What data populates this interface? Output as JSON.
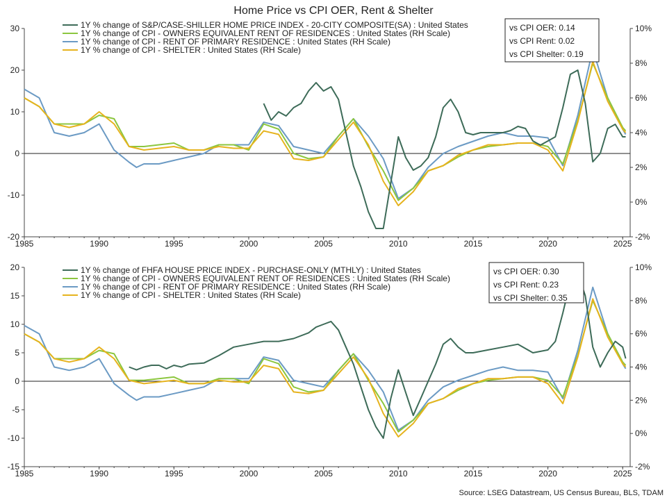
{
  "title": "Home Price vs CPI OER, Rent & Shelter",
  "source": "Source: LSEG Datastream, US Census Bureau, BLS, TDAM",
  "colors": {
    "home": "#3d6b58",
    "oer": "#8cc63f",
    "rent": "#6b9ac4",
    "shelter": "#e6b31e"
  },
  "chart_data": [
    {
      "type": "line",
      "x_ticks": [
        "1985",
        "1990",
        "1995",
        "2000",
        "2005",
        "2010",
        "2015",
        "2020",
        "2025"
      ],
      "xlim": [
        1985,
        2025.5
      ],
      "left_ticks": [
        "30",
        "20",
        "10",
        "0",
        "-10",
        "-20"
      ],
      "ylim_left": [
        -20,
        30
      ],
      "right_ticks": [
        "10%",
        "8%",
        "6%",
        "4%",
        "2%",
        "0%",
        "-2%"
      ],
      "ylim_right": [
        -2,
        10
      ],
      "legend": [
        "1Y % change of S&P/CASE-SHILLER HOME PRICE INDEX - 20-CITY COMPOSITE(SA) : United States",
        "1Y % change of CPI - OWNERS EQUIVALENT RENT OF RESIDENCES : United States (RH Scale)",
        "1Y % change of CPI - RENT OF PRIMARY RESIDENCE : United States (RH Scale)",
        "1Y % change of CPI - SHELTER : United States (RH Scale)"
      ],
      "correlations": [
        "vs CPI OER: 0.14",
        "vs CPI Rent: 0.02",
        "vs CPI Shelter: 0.19"
      ],
      "series": [
        {
          "name": "1Y % change of S&P/CASE-SHILLER HOME PRICE INDEX - 20-CITY COMPOSITE(SA) : United States",
          "axis": "left",
          "color_key": "home",
          "x": [
            2001.0,
            2001.5,
            2002.0,
            2002.5,
            2003.0,
            2003.5,
            2004.0,
            2004.5,
            2005.0,
            2005.5,
            2006.0,
            2006.5,
            2007.0,
            2007.5,
            2008.0,
            2008.5,
            2009.0,
            2009.5,
            2010.0,
            2010.5,
            2011.0,
            2011.5,
            2012.0,
            2012.5,
            2013.0,
            2013.5,
            2014.0,
            2014.5,
            2015.0,
            2015.5,
            2016.0,
            2016.5,
            2017.0,
            2017.5,
            2018.0,
            2018.5,
            2019.0,
            2019.5,
            2020.0,
            2020.5,
            2021.0,
            2021.5,
            2022.0,
            2022.5,
            2023.0,
            2023.5,
            2024.0,
            2024.5,
            2025.0,
            2025.2
          ],
          "y": [
            12,
            8,
            10,
            9,
            11,
            12,
            15,
            17,
            15,
            16,
            13,
            5,
            -3,
            -8,
            -14,
            -18,
            -18,
            -7,
            4,
            -1,
            -4,
            -3,
            -1,
            4,
            11,
            13,
            10,
            5,
            4.5,
            5,
            5,
            5,
            5,
            5.5,
            6.5,
            6,
            3,
            2,
            3,
            4,
            11,
            19,
            20,
            12,
            -2,
            0,
            6,
            7,
            4,
            4
          ]
        },
        {
          "name": "1Y % change of CPI - OWNERS EQUIVALENT RENT OF RESIDENCES : United States (RH Scale)",
          "axis": "right",
          "color_key": "oer",
          "x": [
            1985.0,
            1986.0,
            1987.0,
            1988.0,
            1989.0,
            1990.0,
            1991.0,
            1991.5,
            1992.0,
            1993.0,
            1994.0,
            1995.0,
            1996.0,
            1997.0,
            1998.0,
            1999.0,
            2000.0,
            2001.0,
            2002.0,
            2003.0,
            2004.0,
            2005.0,
            2006.0,
            2007.0,
            2008.0,
            2009.0,
            2010.0,
            2011.0,
            2012.0,
            2013.0,
            2014.0,
            2015.0,
            2016.0,
            2017.0,
            2018.0,
            2019.0,
            2020.0,
            2021.0,
            2022.0,
            2023.0,
            2024.0,
            2025.0,
            2025.2
          ],
          "y": [
            6.0,
            5.5,
            4.5,
            4.5,
            4.5,
            5.0,
            4.8,
            4.0,
            3.2,
            3.2,
            3.3,
            3.4,
            3.0,
            3.0,
            3.3,
            3.3,
            3.0,
            4.5,
            4.2,
            2.8,
            2.5,
            2.6,
            3.8,
            4.8,
            3.2,
            1.8,
            0.1,
            0.8,
            1.8,
            2.1,
            2.6,
            3.0,
            3.2,
            3.3,
            3.4,
            3.4,
            3.2,
            2.2,
            4.7,
            8.0,
            6.0,
            4.3,
            4.1
          ]
        },
        {
          "name": "1Y % change of CPI - RENT OF PRIMARY RESIDENCE : United States (RH Scale)",
          "axis": "right",
          "color_key": "rent",
          "x": [
            1985.0,
            1986.0,
            1987.0,
            1988.0,
            1989.0,
            1990.0,
            1991.0,
            1992.0,
            1992.5,
            1993.0,
            1994.0,
            1995.0,
            1996.0,
            1997.0,
            1998.0,
            1999.0,
            2000.0,
            2001.0,
            2002.0,
            2003.0,
            2004.0,
            2005.0,
            2006.0,
            2007.0,
            2008.0,
            2009.0,
            2010.0,
            2011.0,
            2012.0,
            2013.0,
            2014.0,
            2015.0,
            2016.0,
            2017.0,
            2018.0,
            2019.0,
            2020.0,
            2021.0,
            2022.0,
            2023.0,
            2024.0,
            2025.0,
            2025.2
          ],
          "y": [
            6.5,
            6.0,
            4.0,
            3.8,
            4.0,
            4.5,
            3.0,
            2.3,
            2.0,
            2.2,
            2.2,
            2.4,
            2.6,
            2.8,
            3.3,
            3.3,
            3.3,
            4.6,
            4.4,
            3.2,
            3.0,
            2.8,
            3.8,
            4.8,
            3.8,
            2.5,
            0.2,
            0.8,
            2.0,
            2.8,
            3.2,
            3.5,
            3.8,
            4.0,
            3.8,
            3.8,
            3.7,
            2.1,
            5.0,
            8.8,
            6.0,
            4.2,
            3.9
          ]
        },
        {
          "name": "1Y % change of CPI - SHELTER : United States (RH Scale)",
          "axis": "right",
          "color_key": "shelter",
          "x": [
            1985.0,
            1986.0,
            1987.0,
            1988.0,
            1989.0,
            1990.0,
            1991.0,
            1992.0,
            1993.0,
            1994.0,
            1995.0,
            1996.0,
            1997.0,
            1998.0,
            1999.0,
            2000.0,
            2001.0,
            2002.0,
            2003.0,
            2004.0,
            2005.0,
            2006.0,
            2007.0,
            2008.0,
            2009.0,
            2010.0,
            2011.0,
            2012.0,
            2013.0,
            2014.0,
            2015.0,
            2016.0,
            2017.0,
            2018.0,
            2019.0,
            2020.0,
            2021.0,
            2022.0,
            2023.0,
            2024.0,
            2025.0,
            2025.2
          ],
          "y": [
            6.0,
            5.5,
            4.5,
            4.3,
            4.5,
            5.2,
            4.5,
            3.2,
            3.0,
            3.1,
            3.2,
            3.0,
            3.0,
            3.2,
            3.1,
            3.1,
            4.1,
            3.9,
            2.5,
            2.4,
            2.6,
            3.6,
            4.6,
            3.3,
            1.2,
            -0.2,
            0.6,
            1.8,
            2.1,
            2.7,
            3.0,
            3.3,
            3.3,
            3.4,
            3.4,
            3.0,
            1.8,
            4.6,
            8.1,
            5.8,
            4.2,
            4.0
          ]
        }
      ]
    },
    {
      "type": "line",
      "x_ticks": [
        "1985",
        "1990",
        "1995",
        "2000",
        "2005",
        "2010",
        "2015",
        "2020",
        "2025"
      ],
      "xlim": [
        1985,
        2025.5
      ],
      "left_ticks": [
        "20",
        "15",
        "10",
        "5",
        "0",
        "-5",
        "-10",
        "-15"
      ],
      "ylim_left": [
        -15,
        20
      ],
      "right_ticks": [
        "10%",
        "8%",
        "6%",
        "4%",
        "2%",
        "0%",
        "-2%"
      ],
      "ylim_right": [
        -2,
        10
      ],
      "legend": [
        "1Y % change of FHFA HOUSE PRICE INDEX - PURCHASE-ONLY (MTHLY) : United States",
        "1Y % change of CPI - OWNERS EQUIVALENT RENT OF RESIDENCES : United States (RH Scale)",
        "1Y % change of CPI - RENT OF PRIMARY RESIDENCE : United States (RH Scale)",
        "1Y % change of CPI - SHELTER : United States (RH Scale)"
      ],
      "correlations": [
        "vs CPI OER: 0.30",
        "vs CPI Rent: 0.23",
        "vs CPI Shelter: 0.35"
      ],
      "series": [
        {
          "name": "1Y % change of FHFA HOUSE PRICE INDEX - PURCHASE-ONLY (MTHLY) : United States",
          "axis": "left",
          "color_key": "home",
          "x": [
            1992.0,
            1992.5,
            1993.0,
            1993.5,
            1994.0,
            1994.5,
            1995.0,
            1995.5,
            1996.0,
            1997.0,
            1998.0,
            1999.0,
            2000.0,
            2001.0,
            2002.0,
            2003.0,
            2004.0,
            2004.5,
            2005.0,
            2005.5,
            2006.0,
            2006.5,
            2007.0,
            2007.5,
            2008.0,
            2008.5,
            2009.0,
            2009.5,
            2010.0,
            2010.5,
            2011.0,
            2011.5,
            2012.0,
            2012.5,
            2013.0,
            2013.5,
            2014.0,
            2014.5,
            2015.0,
            2016.0,
            2017.0,
            2018.0,
            2019.0,
            2020.0,
            2020.5,
            2021.0,
            2021.5,
            2022.0,
            2022.5,
            2023.0,
            2023.5,
            2024.0,
            2024.5,
            2025.0,
            2025.2
          ],
          "y": [
            2.5,
            2.0,
            2.5,
            2.8,
            2.8,
            2.2,
            2.8,
            2.5,
            3.0,
            3.2,
            4.5,
            6.0,
            6.5,
            7.0,
            7.0,
            7.5,
            8.5,
            9.5,
            10.0,
            10.5,
            9.0,
            6.0,
            3.0,
            -1.0,
            -5.0,
            -8.0,
            -10.0,
            -3.0,
            2.0,
            -2.0,
            -6.0,
            -3.0,
            0.0,
            3.0,
            6.5,
            7.5,
            6.0,
            5.0,
            5.0,
            5.5,
            6.0,
            6.5,
            5.0,
            5.5,
            7.0,
            12.0,
            17.5,
            19.0,
            15.0,
            6.0,
            2.5,
            5.0,
            7.0,
            6.0,
            4.0
          ]
        },
        {
          "name": "1Y % change of CPI - OWNERS EQUIVALENT RENT OF RESIDENCES : United States (RH Scale)",
          "axis": "right",
          "color_key": "oer",
          "x": [
            1985.0,
            1986.0,
            1987.0,
            1988.0,
            1989.0,
            1990.0,
            1991.0,
            1991.5,
            1992.0,
            1993.0,
            1994.0,
            1995.0,
            1996.0,
            1997.0,
            1998.0,
            1999.0,
            2000.0,
            2001.0,
            2002.0,
            2003.0,
            2004.0,
            2005.0,
            2006.0,
            2007.0,
            2008.0,
            2009.0,
            2010.0,
            2011.0,
            2012.0,
            2013.0,
            2014.0,
            2015.0,
            2016.0,
            2017.0,
            2018.0,
            2019.0,
            2020.0,
            2021.0,
            2022.0,
            2023.0,
            2024.0,
            2025.0,
            2025.2
          ],
          "y": [
            6.0,
            5.5,
            4.5,
            4.5,
            4.5,
            5.0,
            4.8,
            4.0,
            3.2,
            3.2,
            3.3,
            3.4,
            3.0,
            3.0,
            3.3,
            3.3,
            3.0,
            4.5,
            4.2,
            2.8,
            2.5,
            2.6,
            3.8,
            4.8,
            3.2,
            1.8,
            0.1,
            0.8,
            1.8,
            2.1,
            2.6,
            3.0,
            3.2,
            3.3,
            3.4,
            3.4,
            3.2,
            2.2,
            4.7,
            8.0,
            6.0,
            4.3,
            4.1
          ]
        },
        {
          "name": "1Y % change of CPI - RENT OF PRIMARY RESIDENCE : United States (RH Scale)",
          "axis": "right",
          "color_key": "rent",
          "x": [
            1985.0,
            1986.0,
            1987.0,
            1988.0,
            1989.0,
            1990.0,
            1991.0,
            1992.0,
            1992.5,
            1993.0,
            1994.0,
            1995.0,
            1996.0,
            1997.0,
            1998.0,
            1999.0,
            2000.0,
            2001.0,
            2002.0,
            2003.0,
            2004.0,
            2005.0,
            2006.0,
            2007.0,
            2008.0,
            2009.0,
            2010.0,
            2011.0,
            2012.0,
            2013.0,
            2014.0,
            2015.0,
            2016.0,
            2017.0,
            2018.0,
            2019.0,
            2020.0,
            2021.0,
            2022.0,
            2023.0,
            2024.0,
            2025.0,
            2025.2
          ],
          "y": [
            6.5,
            6.0,
            4.0,
            3.8,
            4.0,
            4.5,
            3.0,
            2.3,
            2.0,
            2.2,
            2.2,
            2.4,
            2.6,
            2.8,
            3.3,
            3.3,
            3.3,
            4.6,
            4.4,
            3.2,
            3.0,
            2.8,
            3.8,
            4.8,
            3.8,
            2.5,
            0.2,
            0.8,
            2.0,
            2.8,
            3.2,
            3.5,
            3.8,
            4.0,
            3.8,
            3.8,
            3.7,
            2.1,
            5.0,
            8.8,
            6.0,
            4.2,
            3.9
          ]
        },
        {
          "name": "1Y % change of CPI - SHELTER : United States (RH Scale)",
          "axis": "right",
          "color_key": "shelter",
          "x": [
            1985.0,
            1986.0,
            1987.0,
            1988.0,
            1989.0,
            1990.0,
            1991.0,
            1992.0,
            1993.0,
            1994.0,
            1995.0,
            1996.0,
            1997.0,
            1998.0,
            1999.0,
            2000.0,
            2001.0,
            2002.0,
            2003.0,
            2004.0,
            2005.0,
            2006.0,
            2007.0,
            2008.0,
            2009.0,
            2010.0,
            2011.0,
            2012.0,
            2013.0,
            2014.0,
            2015.0,
            2016.0,
            2017.0,
            2018.0,
            2019.0,
            2020.0,
            2021.0,
            2022.0,
            2023.0,
            2024.0,
            2025.0,
            2025.2
          ],
          "y": [
            6.0,
            5.5,
            4.5,
            4.3,
            4.5,
            5.2,
            4.5,
            3.2,
            3.0,
            3.1,
            3.2,
            3.0,
            3.0,
            3.2,
            3.1,
            3.1,
            4.1,
            3.9,
            2.5,
            2.4,
            2.6,
            3.6,
            4.6,
            3.3,
            1.2,
            -0.2,
            0.6,
            1.8,
            2.1,
            2.7,
            3.0,
            3.3,
            3.3,
            3.4,
            3.4,
            3.0,
            1.8,
            4.6,
            8.1,
            5.8,
            4.2,
            4.0
          ]
        }
      ]
    }
  ]
}
